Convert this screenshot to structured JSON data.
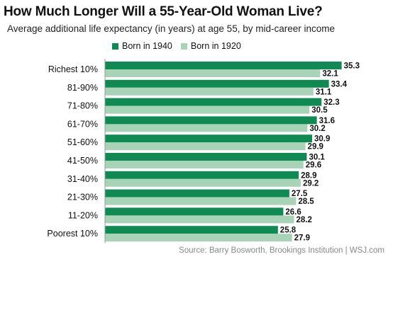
{
  "header": {
    "title": "How Much Longer Will a 55-Year-Old Woman Live?",
    "subtitle": "Average additional life expectancy (in years) at age 55, by mid-career income"
  },
  "source": "Source: Barry Bosworth, Brookings Institution  |  WSJ.com",
  "colors": {
    "born_1940": "#0e8a52",
    "born_1920": "#a9d3b6",
    "axis": "#9a9a9a",
    "source_text": "#888888"
  },
  "chart_data": {
    "type": "bar",
    "orientation": "horizontal",
    "title": "How Much Longer Will a 55-Year-Old Woman Live?",
    "subtitle": "Average additional life expectancy (in years) at age 55, by mid-career income",
    "categories": [
      "Richest 10%",
      "81-90%",
      "71-80%",
      "61-70%",
      "51-60%",
      "41-50%",
      "31-40%",
      "21-30%",
      "11-20%",
      "Poorest 10%"
    ],
    "series": [
      {
        "name": "Born in 1940",
        "values": [
          35.3,
          33.4,
          32.3,
          31.6,
          30.9,
          30.1,
          28.9,
          27.5,
          26.6,
          25.8
        ]
      },
      {
        "name": "Born in 1920",
        "values": [
          32.1,
          31.1,
          30.5,
          30.2,
          29.9,
          29.6,
          29.2,
          28.5,
          28.2,
          27.9
        ]
      }
    ],
    "legend_position": "top",
    "grid": false,
    "data_labels": true
  }
}
